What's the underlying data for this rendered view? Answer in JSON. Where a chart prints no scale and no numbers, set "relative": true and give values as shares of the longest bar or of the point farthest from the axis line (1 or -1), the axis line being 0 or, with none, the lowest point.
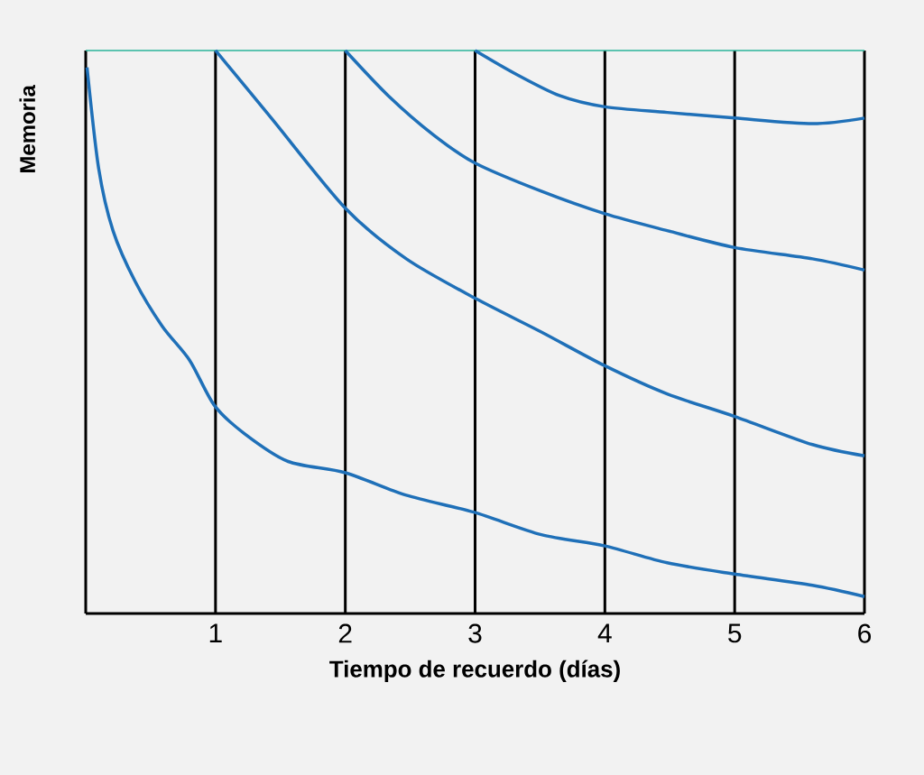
{
  "chart_data": {
    "type": "line",
    "relative": true,
    "xlabel": "Tiempo de recuerdo (días)",
    "ylabel": "Memoria",
    "xlim": [
      0,
      6
    ],
    "xticks": [
      1,
      2,
      3,
      4,
      5,
      6
    ],
    "grid": "x",
    "marker": "none",
    "line_style": "solid",
    "ref_lines": [
      {
        "axis": "y",
        "value": 1,
        "color": "#2ab39a"
      }
    ],
    "series": [
      {
        "color": "#1f70b8",
        "x": [
          0.01,
          0.1,
          0.21,
          0.38,
          0.59,
          0.8,
          0.99,
          1.22,
          1.56,
          2.0,
          2.47,
          2.99,
          3.51,
          4.0,
          4.48,
          5.0,
          5.6,
          6.0
        ],
        "values": [
          0.97,
          0.79,
          0.68,
          0.59,
          0.51,
          0.45,
          0.37,
          0.32,
          0.27,
          0.25,
          0.21,
          0.18,
          0.14,
          0.12,
          0.09,
          0.07,
          0.05,
          0.03
        ]
      },
      {
        "color": "#1f70b8",
        "x": [
          1.0,
          1.43,
          2.0,
          2.47,
          3.0,
          3.51,
          4.0,
          4.48,
          5.0,
          5.6,
          6.0
        ],
        "values": [
          1.0,
          0.88,
          0.72,
          0.63,
          0.56,
          0.5,
          0.44,
          0.39,
          0.35,
          0.3,
          0.28
        ]
      },
      {
        "color": "#1f70b8",
        "x": [
          2.0,
          2.33,
          2.68,
          3.0,
          3.51,
          4.0,
          4.48,
          5.0,
          5.6,
          6.0
        ],
        "values": [
          1.0,
          0.92,
          0.85,
          0.8,
          0.75,
          0.71,
          0.68,
          0.65,
          0.63,
          0.61
        ]
      },
      {
        "color": "#1f70b8",
        "x": [
          3.0,
          3.3,
          3.65,
          4.0,
          4.48,
          5.0,
          5.6,
          6.0
        ],
        "values": [
          1.0,
          0.96,
          0.92,
          0.9,
          0.89,
          0.88,
          0.87,
          0.88
        ]
      }
    ]
  }
}
